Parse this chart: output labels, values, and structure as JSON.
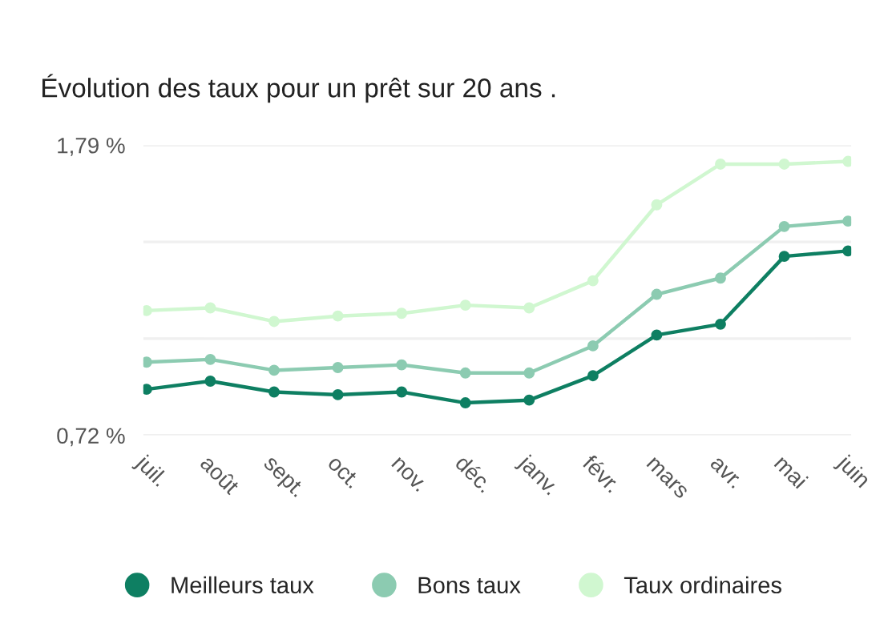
{
  "chart_data": {
    "type": "line",
    "title": "Évolution des taux pour un prêt sur 20 ans .",
    "categories": [
      "juil.",
      "août",
      "sept.",
      "oct.",
      "nov.",
      "déc.",
      "janv.",
      "févr.",
      "mars",
      "avr.",
      "mai",
      "juin"
    ],
    "series": [
      {
        "name": "Meilleurs taux",
        "color": "#0e7f62",
        "values": [
          0.89,
          0.92,
          0.88,
          0.87,
          0.88,
          0.84,
          0.85,
          0.94,
          1.09,
          1.13,
          1.38,
          1.4
        ]
      },
      {
        "name": "Bons taux",
        "color": "#8ccbb1",
        "values": [
          0.99,
          1.0,
          0.96,
          0.97,
          0.98,
          0.95,
          0.95,
          1.05,
          1.24,
          1.3,
          1.49,
          1.51
        ]
      },
      {
        "name": "Taux ordinaires",
        "color": "#d0f7d0",
        "values": [
          1.18,
          1.19,
          1.14,
          1.16,
          1.17,
          1.2,
          1.19,
          1.29,
          1.57,
          1.72,
          1.72,
          1.73
        ]
      }
    ],
    "ylim": [
      0.72,
      1.79
    ],
    "yticks": [
      {
        "value": 0.72,
        "label": "0,72 %"
      },
      {
        "value": 1.0767,
        "label": null
      },
      {
        "value": 1.4333,
        "label": null
      },
      {
        "value": 1.79,
        "label": "1,79 %"
      }
    ],
    "grid": "y",
    "legend": "bottom",
    "marker": "circle",
    "line_style": "solid"
  }
}
